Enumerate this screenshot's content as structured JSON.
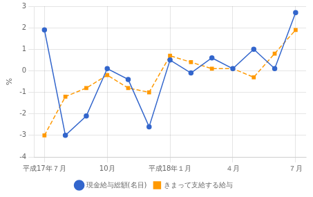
{
  "chart_data": {
    "type": "line",
    "ylabel": "%",
    "categories": [
      "平成17年７月",
      null,
      null,
      "10月",
      null,
      null,
      "平成18年１月",
      null,
      null,
      "４月",
      null,
      null,
      "７月"
    ],
    "series": [
      {
        "name": "現金給与総額(名目)",
        "color": "#3366cc",
        "marker": "circle",
        "line_style": "solid",
        "values": [
          1.9,
          -3.0,
          -2.1,
          0.1,
          -0.4,
          -2.6,
          0.5,
          -0.1,
          0.6,
          0.1,
          1.0,
          0.1,
          2.7
        ]
      },
      {
        "name": "きまって支給する給与",
        "color": "#ff9900",
        "marker": "square",
        "line_style": "dashed",
        "values": [
          -3.0,
          -1.2,
          -0.8,
          -0.2,
          -0.8,
          -1.0,
          0.7,
          0.4,
          0.1,
          0.1,
          -0.3,
          0.8,
          1.9
        ]
      }
    ],
    "ylim": [
      -4,
      3
    ],
    "yticks": [
      -4,
      -3,
      -2,
      -1,
      0,
      1,
      2,
      3
    ],
    "grid": true,
    "legend": "bottom"
  }
}
